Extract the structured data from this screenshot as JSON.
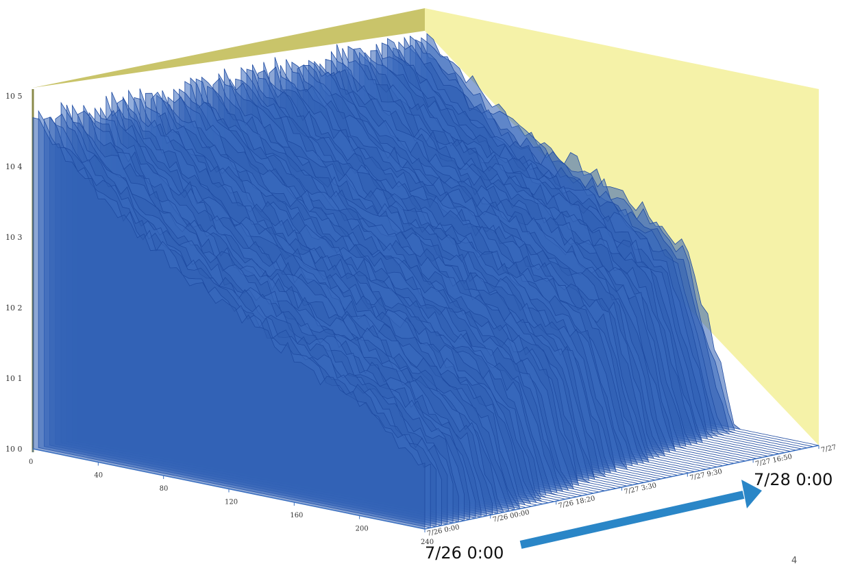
{
  "chart_data": {
    "type": "area",
    "title": "",
    "xlabel": "",
    "ylabel": "",
    "y_scale": "log",
    "ylim": [
      1,
      100000
    ],
    "y_ticks": [
      "10^0",
      "10^1",
      "10^2",
      "10^3",
      "10^4",
      "10^5"
    ],
    "x_ticks": [
      0,
      40,
      80,
      120,
      160,
      200,
      240
    ],
    "time_ticks": [
      "7/26 0:00",
      "7/26 00:00",
      "7/26 18:20",
      "7/27 3:30",
      "7/27 9:30",
      "7/27 16:50",
      "7/27"
    ],
    "surface_color": "#2f5fb3",
    "wall_color": "#f5f2a8",
    "back_wall_color": "#c9c46a",
    "approximate_profile": {
      "x": [
        0,
        20,
        40,
        60,
        80,
        100,
        120,
        140,
        160,
        180,
        200,
        220,
        240
      ],
      "log10_y_early": [
        4.7,
        4.2,
        3.8,
        3.4,
        3.1,
        2.8,
        2.6,
        2.3,
        2.1,
        1.8,
        1.6,
        1.2,
        0.9
      ],
      "log10_y_late": [
        4.7,
        4.3,
        3.9,
        3.6,
        3.4,
        3.2,
        3.0,
        2.7,
        2.4,
        2.0,
        1.5,
        1.1,
        0.8
      ]
    }
  },
  "annotations": {
    "start_label": "7/26 0:00",
    "end_label": "7/28 0:00",
    "arrow_color": "#2a86c7",
    "page_number": "4"
  }
}
